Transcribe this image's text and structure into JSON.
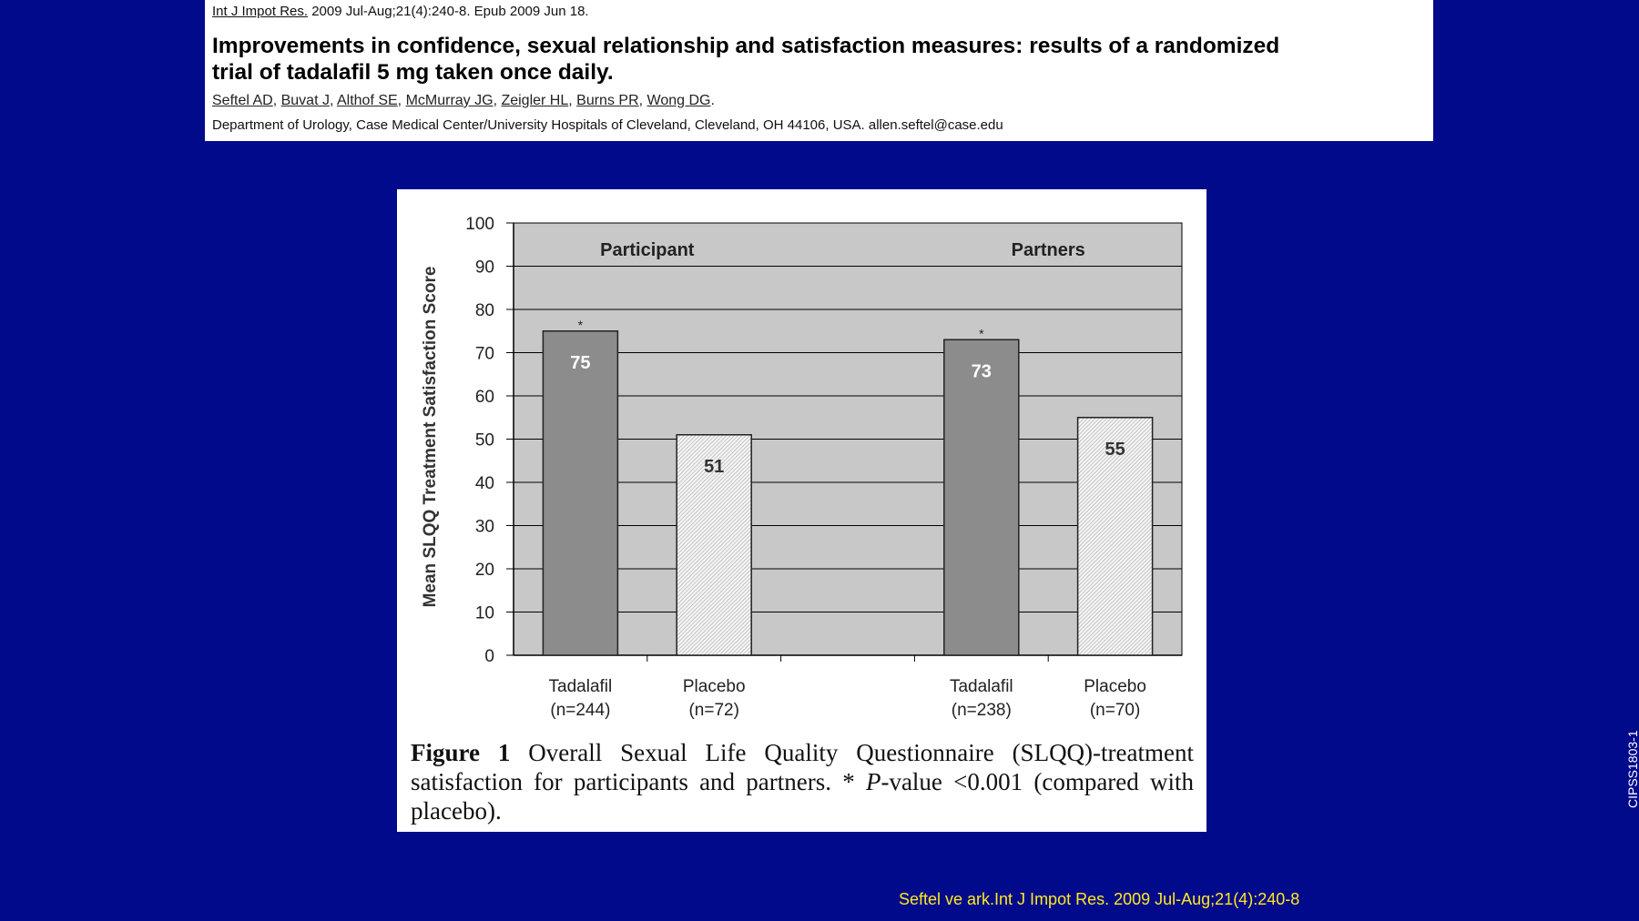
{
  "citation": {
    "journal": "Int J Impot Res.",
    "journal_rest": " 2009 Jul-Aug;21(4):240-8. Epub 2009 Jun 18.",
    "title_line1": "Improvements in confidence, sexual relationship and satisfaction measures: results of a randomized",
    "title_line2": "trial of tadalafil 5 mg taken once daily.",
    "authors": [
      "Seftel AD",
      "Buvat J",
      "Althof SE",
      "McMurray JG",
      "Zeigler HL",
      "Burns PR",
      "Wong DG"
    ],
    "affiliation": "Department of Urology, Case Medical Center/University Hospitals of Cleveland, Cleveland, OH 44106, USA. allen.seftel@case.edu"
  },
  "chart_data": {
    "type": "bar",
    "ylabel": "Mean SLQQ Treatment Satisfaction Score",
    "ylim": [
      0,
      100
    ],
    "yticks": [
      0,
      10,
      20,
      30,
      40,
      50,
      60,
      70,
      80,
      90,
      100
    ],
    "grid": true,
    "groups": [
      {
        "name": "Participant",
        "bars": [
          {
            "label": "Tadalafil",
            "n": "(n=244)",
            "value": 75,
            "marker": "*",
            "style": "solid"
          },
          {
            "label": "Placebo",
            "n": "(n=72)",
            "value": 51,
            "marker": "",
            "style": "hatched"
          }
        ]
      },
      {
        "name": "Partners",
        "bars": [
          {
            "label": "Tadalafil",
            "n": "(n=238)",
            "value": 73,
            "marker": "*",
            "style": "solid"
          },
          {
            "label": "Placebo",
            "n": "(n=70)",
            "value": 55,
            "marker": "",
            "style": "hatched"
          }
        ]
      }
    ],
    "colors": {
      "plot_background": "#c8c8c8",
      "tadalafil_bar": "#8c8c8c",
      "placebo_bar": "#f0f0f0",
      "gridline": "#000000"
    }
  },
  "caption": {
    "label": "Figure 1",
    "text_part1": "  Overall Sexual Life Quality Questionnaire (SLQQ)-treatment satisfaction for participants and partners. * ",
    "italic": "P",
    "text_part2": "-value <0.001 (compared with placebo)."
  },
  "footer": {
    "reference": "Seftel ve ark.Int J Impot Res. 2009 Jul-Aug;21(4):240-8",
    "code": "CIPSS1803-1"
  }
}
